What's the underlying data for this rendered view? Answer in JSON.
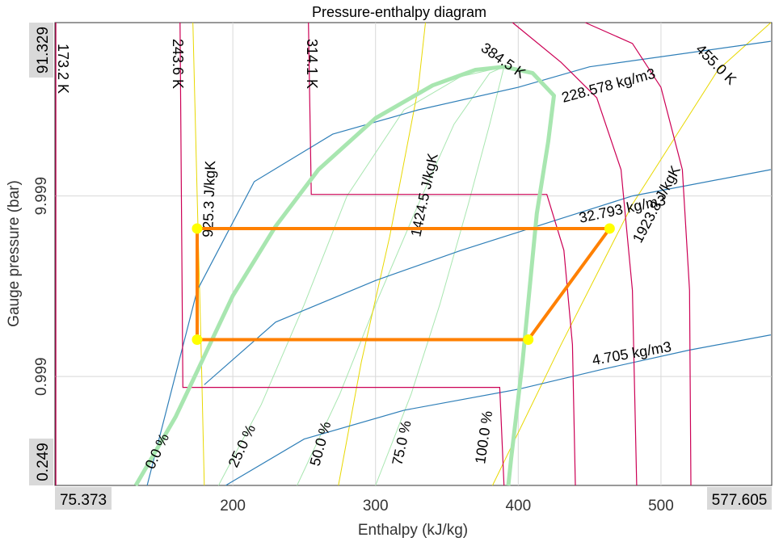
{
  "chart_data": {
    "type": "line",
    "title": "Pressure-enthalpy diagram",
    "xlabel": "Enthalpy (kJ/kg)",
    "ylabel": "Gauge pressure (bar)",
    "xlim": [
      75.373,
      577.605
    ],
    "ylim": [
      0.249,
      91.329
    ],
    "yscale": "log",
    "grid": true,
    "x_ticks": [
      200,
      300,
      400,
      500
    ],
    "y_ticks": [
      0.999,
      9.999
    ],
    "x_corner_labels": [
      "75.373",
      "577.605"
    ],
    "y_corner_labels": [
      "0.249",
      "91.329"
    ],
    "colors": {
      "saturation": "#a8e6b0",
      "isotherm": "#cc0055",
      "isochore": "#2f7fb8",
      "isentrope": "#e8d800",
      "quality": "#a8e6b0",
      "cycle": "#ff8000",
      "cycle_point": "#ffff00"
    },
    "saturation_dome": [
      {
        "h": 132,
        "p": 0.249
      },
      {
        "h": 160,
        "p": 0.6
      },
      {
        "h": 178,
        "p": 1.2
      },
      {
        "h": 200,
        "p": 2.8
      },
      {
        "h": 230,
        "p": 6.8
      },
      {
        "h": 260,
        "p": 14
      },
      {
        "h": 300,
        "p": 27
      },
      {
        "h": 340,
        "p": 41
      },
      {
        "h": 370,
        "p": 50
      },
      {
        "h": 390,
        "p": 52
      },
      {
        "h": 410,
        "p": 48
      },
      {
        "h": 425,
        "p": 36
      },
      {
        "h": 421,
        "p": 20
      },
      {
        "h": 413,
        "p": 8
      },
      {
        "h": 403,
        "p": 1.2
      },
      {
        "h": 395,
        "p": 0.35
      },
      {
        "h": 393,
        "p": 0.249
      }
    ],
    "isotherms": [
      {
        "label": "173.2 K",
        "points": [
          {
            "h": 76,
            "p": 91.329
          },
          {
            "h": 76,
            "p": 0.249
          }
        ]
      },
      {
        "label": "243.6 K",
        "points": [
          {
            "h": 163,
            "p": 91.329
          },
          {
            "h": 165,
            "p": 0.87
          },
          {
            "h": 246,
            "p": 0.87
          },
          {
            "h": 387,
            "p": 0.87
          },
          {
            "h": 390,
            "p": 0.249
          }
        ]
      },
      {
        "label": "314.1 K",
        "points": [
          {
            "h": 253,
            "p": 91.329
          },
          {
            "h": 255,
            "p": 10.2
          },
          {
            "h": 330,
            "p": 10.2
          },
          {
            "h": 420,
            "p": 10.2
          },
          {
            "h": 432,
            "p": 5
          },
          {
            "h": 438,
            "p": 1.5
          },
          {
            "h": 440,
            "p": 0.249
          }
        ]
      },
      {
        "label": "384.5 K",
        "points": [
          {
            "h": 396,
            "p": 91.329
          },
          {
            "h": 430,
            "p": 55
          },
          {
            "h": 455,
            "p": 35
          },
          {
            "h": 472,
            "p": 14
          },
          {
            "h": 480,
            "p": 3
          },
          {
            "h": 483,
            "p": 0.249
          }
        ]
      },
      {
        "label": "455.0 K",
        "points": [
          {
            "h": 447,
            "p": 91.329
          },
          {
            "h": 480,
            "p": 70
          },
          {
            "h": 500,
            "p": 40
          },
          {
            "h": 515,
            "p": 14
          },
          {
            "h": 520,
            "p": 3
          },
          {
            "h": 521,
            "p": 0.249
          }
        ]
      }
    ],
    "isochores": [
      {
        "label": "228.578 kg/m3",
        "points": [
          {
            "h": 140,
            "p": 0.249
          },
          {
            "h": 175,
            "p": 3
          },
          {
            "h": 215,
            "p": 12
          },
          {
            "h": 270,
            "p": 22
          },
          {
            "h": 330,
            "p": 30
          },
          {
            "h": 400,
            "p": 40
          },
          {
            "h": 450,
            "p": 52
          },
          {
            "h": 577,
            "p": 72
          }
        ]
      },
      {
        "label": "32.793 kg/m3",
        "points": [
          {
            "h": 180,
            "p": 0.9
          },
          {
            "h": 230,
            "p": 2
          },
          {
            "h": 300,
            "p": 3.4
          },
          {
            "h": 360,
            "p": 5
          },
          {
            "h": 430,
            "p": 7.5
          },
          {
            "h": 480,
            "p": 10
          },
          {
            "h": 577,
            "p": 14
          }
        ]
      },
      {
        "label": "4.705 kg/m3",
        "points": [
          {
            "h": 195,
            "p": 0.249
          },
          {
            "h": 250,
            "p": 0.45
          },
          {
            "h": 320,
            "p": 0.65
          },
          {
            "h": 400,
            "p": 0.85
          },
          {
            "h": 460,
            "p": 1.1
          },
          {
            "h": 520,
            "p": 1.4
          },
          {
            "h": 577,
            "p": 1.7
          }
        ]
      }
    ],
    "isentropes": [
      {
        "label": "925.3 J/kgK",
        "points": [
          {
            "h": 172,
            "p": 91.329
          },
          {
            "h": 175,
            "p": 10
          },
          {
            "h": 178,
            "p": 1.2
          },
          {
            "h": 180,
            "p": 0.249
          }
        ]
      },
      {
        "label": "1424.5 J/kgK",
        "points": [
          {
            "h": 274,
            "p": 0.249
          },
          {
            "h": 290,
            "p": 1.2
          },
          {
            "h": 310,
            "p": 6
          },
          {
            "h": 330,
            "p": 40
          },
          {
            "h": 335,
            "p": 91.329
          }
        ]
      },
      {
        "label": "1923.8 J/kgK",
        "points": [
          {
            "h": 382,
            "p": 0.249
          },
          {
            "h": 430,
            "p": 1.5
          },
          {
            "h": 480,
            "p": 9
          },
          {
            "h": 540,
            "p": 50
          },
          {
            "h": 577,
            "p": 91.329
          }
        ]
      }
    ],
    "quality_lines": [
      {
        "label": "0.0 %",
        "points": [
          {
            "h": 132,
            "p": 0.249
          },
          {
            "h": 160,
            "p": 0.6
          },
          {
            "h": 178,
            "p": 1.2
          },
          {
            "h": 200,
            "p": 2.8
          },
          {
            "h": 230,
            "p": 6.8
          },
          {
            "h": 260,
            "p": 14
          },
          {
            "h": 300,
            "p": 27
          },
          {
            "h": 340,
            "p": 41
          },
          {
            "h": 370,
            "p": 50
          },
          {
            "h": 390,
            "p": 52
          }
        ]
      },
      {
        "label": "25.0 %",
        "points": [
          {
            "h": 190,
            "p": 0.249
          },
          {
            "h": 220,
            "p": 0.7
          },
          {
            "h": 250,
            "p": 2.5
          },
          {
            "h": 280,
            "p": 10
          },
          {
            "h": 320,
            "p": 30
          },
          {
            "h": 360,
            "p": 46
          },
          {
            "h": 390,
            "p": 52
          }
        ]
      },
      {
        "label": "50.0 %",
        "points": [
          {
            "h": 245,
            "p": 0.249
          },
          {
            "h": 275,
            "p": 0.8
          },
          {
            "h": 300,
            "p": 2.5
          },
          {
            "h": 330,
            "p": 9
          },
          {
            "h": 355,
            "p": 25
          },
          {
            "h": 380,
            "p": 48
          },
          {
            "h": 390,
            "p": 52
          }
        ]
      },
      {
        "label": "75.0 %",
        "points": [
          {
            "h": 300,
            "p": 0.249
          },
          {
            "h": 325,
            "p": 0.8
          },
          {
            "h": 345,
            "p": 2.5
          },
          {
            "h": 365,
            "p": 9
          },
          {
            "h": 380,
            "p": 25
          },
          {
            "h": 390,
            "p": 52
          }
        ]
      },
      {
        "label": "100.0 %",
        "points": [
          {
            "h": 393,
            "p": 0.249
          },
          {
            "h": 395,
            "p": 0.35
          },
          {
            "h": 403,
            "p": 1.2
          },
          {
            "h": 413,
            "p": 8
          },
          {
            "h": 421,
            "p": 20
          },
          {
            "h": 425,
            "p": 36
          },
          {
            "h": 410,
            "p": 48
          },
          {
            "h": 390,
            "p": 52
          }
        ]
      }
    ],
    "cycle": [
      {
        "h": 175,
        "p": 6.6
      },
      {
        "h": 464,
        "p": 6.6
      },
      {
        "h": 407,
        "p": 1.6
      },
      {
        "h": 175,
        "p": 1.6
      }
    ]
  }
}
